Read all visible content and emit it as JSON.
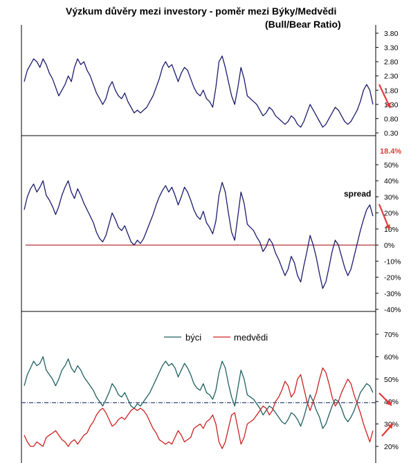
{
  "header": {
    "title": "Výzkum důvěry mezi investory -  poměr mezi Býky/Medvědi",
    "subtitle": "(Bull/Bear Ratio)"
  },
  "colors": {
    "ratio_line": "#1a1a6e",
    "spread_line": "#1a1a6e",
    "zero_line": "#b03030",
    "bulls": "#1f5f5f",
    "bears": "#cc2020",
    "midline": "#1a2a6e",
    "arrow": "#e03a3a",
    "frame": "#000000"
  },
  "icons": {
    "trend_arrow": "arrow-down-right",
    "trend_arrow_up": "arrow-up-right"
  },
  "chart_data": [
    {
      "type": "line",
      "ylim": [
        0.3,
        3.8
      ],
      "yticks": [
        "3.80",
        "3.30",
        "2.80",
        "2.30",
        "1.80",
        "1.30",
        "0.80",
        "0.30"
      ],
      "series": [
        {
          "values": [
            2.1,
            2.5,
            2.7,
            2.9,
            2.8,
            2.6,
            2.9,
            2.7,
            2.4,
            2.2,
            1.9,
            1.6,
            1.8,
            2.0,
            2.3,
            2.1,
            2.6,
            2.9,
            2.7,
            2.8,
            2.5,
            2.3,
            2.0,
            1.7,
            1.5,
            1.3,
            1.5,
            1.9,
            2.1,
            1.8,
            1.6,
            1.5,
            1.7,
            1.4,
            1.2,
            1.0,
            1.1,
            1.0,
            1.1,
            1.2,
            1.4,
            1.6,
            1.9,
            2.2,
            2.6,
            2.8,
            2.6,
            2.7,
            2.4,
            2.1,
            2.4,
            2.6,
            2.5,
            2.2,
            1.9,
            1.7,
            1.6,
            1.8,
            1.5,
            1.4,
            1.2,
            1.9,
            2.8,
            3.0,
            2.6,
            2.1,
            1.6,
            1.3,
            1.9,
            2.6,
            2.2,
            1.6,
            1.5,
            1.4,
            1.3,
            1.1,
            0.9,
            1.0,
            1.2,
            1.1,
            0.9,
            0.8,
            0.7,
            0.6,
            0.7,
            0.9,
            0.8,
            0.6,
            0.5,
            0.7,
            1.0,
            1.3,
            1.1,
            0.9,
            0.7,
            0.5,
            0.6,
            0.8,
            1.0,
            1.2,
            1.1,
            0.9,
            0.7,
            0.6,
            0.7,
            0.9,
            1.1,
            1.4,
            1.8,
            2.0,
            1.8,
            1.3
          ]
        }
      ]
    },
    {
      "type": "line",
      "ylim": [
        -40,
        50
      ],
      "yticks": [
        "50%",
        "40%",
        "30%",
        "20%",
        "10%",
        "0%",
        "-10%",
        "-20%",
        "-30%",
        "-40%"
      ],
      "annotations": {
        "spread_label": "spread",
        "latest_value": "18.4%"
      },
      "series": [
        {
          "values": [
            22,
            30,
            35,
            38,
            33,
            36,
            40,
            31,
            28,
            24,
            19,
            24,
            31,
            36,
            40,
            33,
            29,
            35,
            31,
            26,
            22,
            18,
            14,
            8,
            4,
            2,
            6,
            13,
            20,
            16,
            11,
            9,
            12,
            7,
            2,
            0,
            3,
            1,
            4,
            9,
            14,
            19,
            25,
            30,
            34,
            37,
            33,
            36,
            31,
            25,
            30,
            36,
            33,
            28,
            22,
            18,
            16,
            21,
            14,
            11,
            7,
            15,
            31,
            39,
            33,
            20,
            8,
            3,
            18,
            33,
            26,
            13,
            11,
            9,
            5,
            2,
            -4,
            -1,
            4,
            1,
            -5,
            -9,
            -14,
            -19,
            -15,
            -7,
            -11,
            -19,
            -23,
            -13,
            -4,
            6,
            0,
            -8,
            -18,
            -27,
            -23,
            -14,
            -4,
            3,
            0,
            -7,
            -14,
            -19,
            -15,
            -7,
            1,
            9,
            16,
            22,
            25,
            18
          ]
        }
      ],
      "reference_line": 0
    },
    {
      "type": "line",
      "ylim": [
        20,
        70
      ],
      "yticks": [
        "70%",
        "60%",
        "50%",
        "40%",
        "30%",
        "20%"
      ],
      "legend": {
        "placement": "top-center"
      },
      "reference_line": 39.5,
      "series": [
        {
          "name": "býci",
          "values": [
            47,
            52,
            55,
            58,
            56,
            57,
            60,
            54,
            52,
            50,
            47,
            50,
            54,
            56,
            59,
            55,
            53,
            56,
            54,
            51,
            49,
            47,
            45,
            42,
            40,
            38,
            41,
            44,
            48,
            46,
            43,
            42,
            44,
            41,
            38,
            37,
            39,
            38,
            40,
            42,
            44,
            47,
            50,
            53,
            56,
            58,
            56,
            57,
            55,
            51,
            54,
            57,
            55,
            52,
            48,
            46,
            45,
            48,
            44,
            43,
            41,
            45,
            53,
            58,
            55,
            48,
            42,
            38,
            46,
            54,
            50,
            43,
            42,
            41,
            39,
            37,
            34,
            36,
            38,
            37,
            35,
            33,
            31,
            30,
            32,
            35,
            34,
            32,
            29,
            33,
            38,
            43,
            40,
            36,
            33,
            28,
            30,
            34,
            38,
            41,
            40,
            37,
            33,
            31,
            33,
            36,
            40,
            44,
            46,
            48,
            47,
            44
          ]
        },
        {
          "name": "medvědi",
          "values": [
            25,
            22,
            20,
            20,
            22,
            21,
            20,
            24,
            25,
            26,
            27,
            25,
            23,
            22,
            20,
            22,
            23,
            21,
            23,
            25,
            26,
            29,
            31,
            34,
            36,
            37,
            35,
            32,
            29,
            30,
            32,
            33,
            32,
            34,
            36,
            37,
            36,
            37,
            36,
            34,
            31,
            28,
            26,
            23,
            22,
            21,
            22,
            21,
            24,
            27,
            25,
            22,
            23,
            24,
            28,
            29,
            30,
            28,
            31,
            32,
            34,
            30,
            22,
            19,
            22,
            28,
            34,
            35,
            28,
            21,
            24,
            30,
            31,
            32,
            34,
            36,
            38,
            37,
            34,
            36,
            40,
            42,
            45,
            49,
            47,
            42,
            44,
            50,
            52,
            46,
            40,
            36,
            40,
            44,
            50,
            55,
            53,
            48,
            42,
            38,
            40,
            44,
            47,
            50,
            48,
            43,
            39,
            35,
            30,
            26,
            22,
            27
          ]
        }
      ]
    }
  ]
}
